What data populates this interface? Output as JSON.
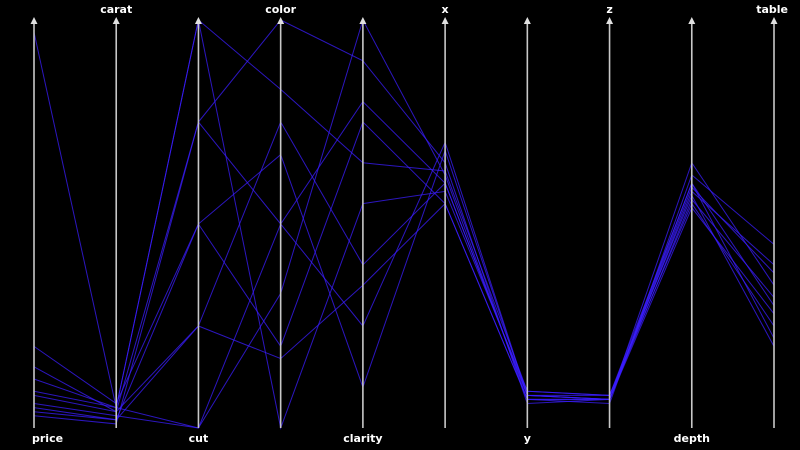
{
  "chart_data": {
    "type": "parallel-coordinates",
    "background": "#000000",
    "line_color": "#3b1dff",
    "axis_color": "#c8c8c8",
    "label_color": "#ffffff",
    "axes": [
      {
        "name": "price",
        "label_position": "bottom"
      },
      {
        "name": "carat",
        "label_position": "top"
      },
      {
        "name": "cut",
        "label_position": "bottom"
      },
      {
        "name": "color",
        "label_position": "top"
      },
      {
        "name": "clarity",
        "label_position": "bottom"
      },
      {
        "name": "x",
        "label_position": "top"
      },
      {
        "name": "y",
        "label_position": "bottom"
      },
      {
        "name": "z",
        "label_position": "top"
      },
      {
        "name": "depth",
        "label_position": "bottom"
      },
      {
        "name": "table",
        "label_position": "top"
      }
    ],
    "series": [
      {
        "values": [
          0.97,
          0.05,
          0.0,
          0.5,
          0.25,
          0.7,
          0.08,
          0.07,
          0.58,
          0.4
        ]
      },
      {
        "values": [
          0.05,
          0.02,
          0.5,
          0.2,
          0.75,
          0.55,
          0.07,
          0.07,
          0.6,
          0.3
        ]
      },
      {
        "values": [
          0.08,
          0.04,
          0.25,
          0.75,
          0.4,
          0.6,
          0.08,
          0.08,
          0.55,
          0.25
        ]
      },
      {
        "values": [
          0.03,
          0.01,
          0.75,
          1.0,
          0.9,
          0.65,
          0.06,
          0.07,
          0.65,
          0.35
        ]
      },
      {
        "values": [
          0.12,
          0.05,
          1.0,
          0.0,
          0.55,
          0.58,
          0.09,
          0.08,
          0.57,
          0.2
        ]
      },
      {
        "values": [
          0.06,
          0.03,
          0.0,
          0.33,
          1.0,
          0.62,
          0.07,
          0.06,
          0.62,
          0.45
        ]
      },
      {
        "values": [
          0.2,
          0.06,
          0.5,
          0.67,
          0.1,
          0.68,
          0.08,
          0.07,
          0.59,
          0.38
        ]
      },
      {
        "values": [
          0.04,
          0.02,
          0.25,
          0.17,
          0.35,
          0.55,
          0.07,
          0.07,
          0.54,
          0.28
        ]
      },
      {
        "values": [
          0.09,
          0.05,
          1.0,
          0.83,
          0.65,
          0.63,
          0.09,
          0.08,
          0.6,
          0.22
        ]
      },
      {
        "values": [
          0.15,
          0.04,
          0.75,
          0.5,
          0.8,
          0.6,
          0.08,
          0.07,
          0.56,
          0.32
        ]
      }
    ]
  }
}
